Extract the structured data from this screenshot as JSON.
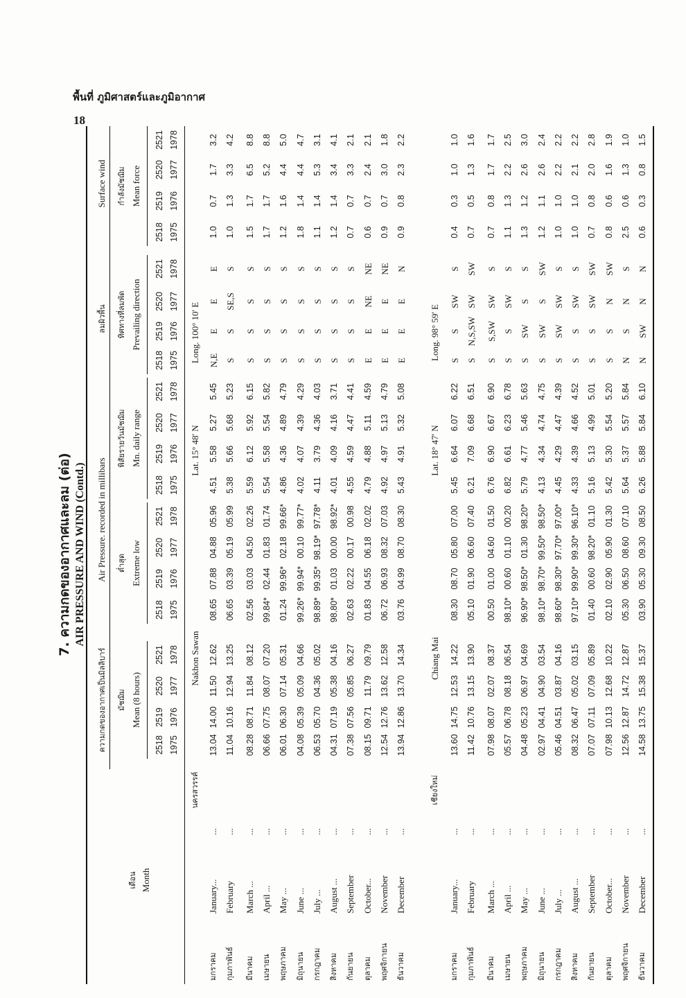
{
  "page_header": {
    "section": "พื้นที่ ภูมิศาสตร์และภูมิอากาศ",
    "page_number": "18"
  },
  "title": {
    "thai": "7. ความกดของอากาศและลม (ต่อ)",
    "english": "AIR PRESSURE AND WIND (Contd.)"
  },
  "headers": {
    "month_thai": "เดือน",
    "month_en": "Month",
    "pressure_thai": "ความกดของอากาศเป็นมิลลิบาร์",
    "pressure_en": "Air Pressure. recorded in millibars",
    "mean_thai": "มัชฌิม",
    "mean_en": "Mean (8 hours)",
    "extreme_thai": "ต่ำสุด",
    "extreme_en": "Extreme low",
    "range_thai": "พิสัยรายวันมัชฌิม",
    "range_en": "Mn. daily range",
    "wind_thai": "ลมผิวพื้น",
    "wind_en": "Surface wind",
    "direction_thai": "ทิศทางที่ลมพัด",
    "direction_en": "Prevailing direction",
    "force_thai": "กำลังมัชฌิม",
    "force_en": "Mean force",
    "years_be": [
      "2518",
      "2519",
      "2520",
      "2521"
    ],
    "years_ce": [
      "1975",
      "1976",
      "1977",
      "1978"
    ]
  },
  "months_thai": [
    "มกราคม",
    "กุมภาพันธ์",
    "มีนาคม",
    "เมษายน",
    "พฤษภาคม",
    "มิถุนายน",
    "กรกฎาคม",
    "สิงหาคม",
    "กันยายน",
    "ตุลาคม",
    "พฤศจิกายน",
    "ธันวาคม"
  ],
  "months_en": [
    "January...",
    "February",
    "March ...",
    "April ...",
    "May ...",
    "June ...",
    "July ...",
    "August ...",
    "September",
    "October...",
    "November",
    "December"
  ],
  "dots": "...",
  "stations": [
    {
      "thai": "นครสวรรค์",
      "name": "Nakhon Sawan",
      "lat": "Lat. 15° 48' N",
      "long": "Long. 100° 10' E",
      "rows": [
        {
          "mean": [
            "13.04",
            "14.00",
            "11.50",
            "12.62"
          ],
          "low": [
            "08.65",
            "07.88",
            "04.88",
            "05.96"
          ],
          "range": [
            "4.51",
            "5.58",
            "5.27",
            "5.45"
          ],
          "dir": [
            "N,E",
            "E",
            "E",
            "E"
          ],
          "force": [
            "1.0",
            "0.7",
            "1.7",
            "3.2"
          ]
        },
        {
          "mean": [
            "11.04",
            "10.16",
            "12.94",
            "13.25"
          ],
          "low": [
            "06.65",
            "03.39",
            "05.19",
            "05.99"
          ],
          "range": [
            "5.38",
            "5.66",
            "5.68",
            "5.23"
          ],
          "dir": [
            "S",
            "S",
            "SE,S",
            "S"
          ],
          "force": [
            "1.0",
            "1.3",
            "3.3",
            "4.2"
          ]
        },
        {
          "mean": [
            "08.28",
            "08.71",
            "11.84",
            "08.12"
          ],
          "low": [
            "02.56",
            "03.03",
            "04.50",
            "02.26"
          ],
          "range": [
            "5.59",
            "6.12",
            "5.92",
            "6.15"
          ],
          "dir": [
            "S",
            "S",
            "S",
            "S"
          ],
          "force": [
            "1.5",
            "1.7",
            "6.5",
            "8.8"
          ]
        },
        {
          "mean": [
            "06.66",
            "07.75",
            "08.07",
            "07.20"
          ],
          "low": [
            "99.84*",
            "02.44",
            "01.83",
            "01.74"
          ],
          "range": [
            "5.54",
            "5.58",
            "5.54",
            "5.82"
          ],
          "dir": [
            "S",
            "S",
            "S",
            "S"
          ],
          "force": [
            "1.7",
            "1.7",
            "5.2",
            "8.8"
          ]
        },
        {
          "mean": [
            "06.01",
            "06.30",
            "07.14",
            "05.31"
          ],
          "low": [
            "01.24",
            "99.96*",
            "02.18",
            "99.66*"
          ],
          "range": [
            "4.86",
            "4.36",
            "4.89",
            "4.79"
          ],
          "dir": [
            "S",
            "S",
            "S",
            "S"
          ],
          "force": [
            "1.2",
            "1.6",
            "4.4",
            "5.0"
          ]
        },
        {
          "mean": [
            "04.08",
            "05.39",
            "05.09",
            "04.66"
          ],
          "low": [
            "99.26*",
            "99.94*",
            "00.10",
            "99.77*"
          ],
          "range": [
            "4.02",
            "4.07",
            "4.39",
            "4.29"
          ],
          "dir": [
            "S",
            "S",
            "S",
            "S"
          ],
          "force": [
            "1.8",
            "1.4",
            "4.4",
            "4.7"
          ]
        },
        {
          "mean": [
            "06.53",
            "05.70",
            "04.36",
            "05.02"
          ],
          "low": [
            "98.89*",
            "99.35*",
            "98.19*",
            "97.78*"
          ],
          "range": [
            "4.11",
            "3.79",
            "4.36",
            "4.03"
          ],
          "dir": [
            "S",
            "S",
            "S",
            "S"
          ],
          "force": [
            "1.1",
            "1.4",
            "5.3",
            "3.1"
          ]
        },
        {
          "mean": [
            "04.31",
            "07.19",
            "05.38",
            "04.16"
          ],
          "low": [
            "98.80*",
            "01.03",
            "00.00",
            "98.92*"
          ],
          "range": [
            "4.01",
            "4.09",
            "4.16",
            "3.71"
          ],
          "dir": [
            "S",
            "S",
            "S",
            "S"
          ],
          "force": [
            "1.2",
            "1.4",
            "3.4",
            "4.1"
          ]
        },
        {
          "mean": [
            "07.38",
            "07.56",
            "05.85",
            "06.27"
          ],
          "low": [
            "02.63",
            "02.22",
            "00.17",
            "00.98"
          ],
          "range": [
            "4.55",
            "4.59",
            "4.47",
            "4.41"
          ],
          "dir": [
            "S",
            "S",
            "S",
            "S"
          ],
          "force": [
            "0.7",
            "0.7",
            "3.3",
            "2.1"
          ]
        },
        {
          "mean": [
            "08.15",
            "09.71",
            "11.79",
            "09.79"
          ],
          "low": [
            "01.83",
            "04.55",
            "06.18",
            "02.02"
          ],
          "range": [
            "4.79",
            "4.88",
            "5.11",
            "4.59"
          ],
          "dir": [
            "E",
            "E",
            "NE",
            "NE"
          ],
          "force": [
            "0.6",
            "0.7",
            "2.4",
            "2.1"
          ]
        },
        {
          "mean": [
            "12.54",
            "12.76",
            "13.62",
            "12.58"
          ],
          "low": [
            "06.72",
            "06.93",
            "08.32",
            "07.03"
          ],
          "range": [
            "4.92",
            "4.97",
            "5.13",
            "4.79"
          ],
          "dir": [
            "E",
            "E",
            "E",
            "NE"
          ],
          "force": [
            "0.9",
            "0.7",
            "3.0",
            "1.8"
          ]
        },
        {
          "mean": [
            "13.94",
            "12.86",
            "13.70",
            "14.34"
          ],
          "low": [
            "03.76",
            "04.99",
            "08.70",
            "08.30"
          ],
          "range": [
            "5.43",
            "4.91",
            "5.32",
            "5.08"
          ],
          "dir": [
            "E",
            "E",
            "E",
            "N"
          ],
          "force": [
            "0.9",
            "0.8",
            "2.3",
            "2.2"
          ]
        }
      ]
    },
    {
      "thai": "เชียงใหม่",
      "name": "Chiang Mai",
      "lat": "Lat. 18° 47' N",
      "long": "Long. 98° 59' E",
      "rows": [
        {
          "mean": [
            "13.60",
            "14.75",
            "12.53",
            "14.22"
          ],
          "low": [
            "08.30",
            "08.70",
            "05.80",
            "07.00"
          ],
          "range": [
            "5.45",
            "6.64",
            "6.07",
            "6.22"
          ],
          "dir": [
            "S",
            "S",
            "SW",
            "S"
          ],
          "force": [
            "0.4",
            "0.3",
            "1.0",
            "1.0"
          ]
        },
        {
          "mean": [
            "11.42",
            "10.76",
            "13.15",
            "13.90"
          ],
          "low": [
            "05.10",
            "01.90",
            "06.60",
            "07.40"
          ],
          "range": [
            "6.21",
            "7.09",
            "6.68",
            "6.51"
          ],
          "dir": [
            "S",
            "N,S,SW",
            "SW",
            "SW"
          ],
          "force": [
            "0.7",
            "0.5",
            "1.3",
            "1.6"
          ]
        },
        {
          "mean": [
            "07.98",
            "08.07",
            "02.07",
            "08.37"
          ],
          "low": [
            "00.50",
            "01.00",
            "04.60",
            "01.50"
          ],
          "range": [
            "6.76",
            "6.90",
            "6.67",
            "6.90"
          ],
          "dir": [
            "S",
            "S,SW",
            "SW",
            "S"
          ],
          "force": [
            "0.7",
            "0.8",
            "1.7",
            "1.7"
          ]
        },
        {
          "mean": [
            "05.57",
            "06.78",
            "08.18",
            "06.54"
          ],
          "low": [
            "98.10*",
            "00.60",
            "01.10",
            "00.20"
          ],
          "range": [
            "6.82",
            "6.61",
            "6.23",
            "6.78"
          ],
          "dir": [
            "S",
            "S",
            "SW",
            "S"
          ],
          "force": [
            "1.1",
            "1.3",
            "2.2",
            "2.5"
          ]
        },
        {
          "mean": [
            "04.48",
            "05.23",
            "06.97",
            "04.69"
          ],
          "low": [
            "96.90*",
            "98.50*",
            "01.30",
            "98.20*"
          ],
          "range": [
            "5.79",
            "4.77",
            "5.46",
            "5.63"
          ],
          "dir": [
            "S",
            "SW",
            "S",
            "S"
          ],
          "force": [
            "1.3",
            "1.2",
            "2.6",
            "3.0"
          ]
        },
        {
          "mean": [
            "02.97",
            "04.41",
            "04.90",
            "03.54"
          ],
          "low": [
            "98.10*",
            "98.70*",
            "99.50*",
            "98.50*"
          ],
          "range": [
            "4.13",
            "4.34",
            "4.74",
            "4.75"
          ],
          "dir": [
            "S",
            "SW",
            "S",
            "SW"
          ],
          "force": [
            "1.2",
            "1.1",
            "2.6",
            "2.4"
          ]
        },
        {
          "mean": [
            "05.46",
            "04.51",
            "03.87",
            "04.16"
          ],
          "low": [
            "98.60*",
            "98.30*",
            "97.70*",
            "97.00*"
          ],
          "range": [
            "4.45",
            "4.29",
            "4.47",
            "4.39"
          ],
          "dir": [
            "S",
            "SW",
            "SW",
            "S"
          ],
          "force": [
            "1.0",
            "1.0",
            "2.2",
            "2.2"
          ]
        },
        {
          "mean": [
            "08.32",
            "06.47",
            "05.02",
            "03.15"
          ],
          "low": [
            "97.10*",
            "99.90*",
            "99.30*",
            "96.10*"
          ],
          "range": [
            "4.33",
            "4.39",
            "4.66",
            "4.52"
          ],
          "dir": [
            "S",
            "S",
            "SW",
            "S"
          ],
          "force": [
            "1.0",
            "1.0",
            "2.1",
            "2.2"
          ]
        },
        {
          "mean": [
            "07.07",
            "07.11",
            "07.09",
            "05.89"
          ],
          "low": [
            "01.40",
            "00.60",
            "98.20*",
            "01.10"
          ],
          "range": [
            "5.16",
            "5.13",
            "4.99",
            "5.01"
          ],
          "dir": [
            "S",
            "S",
            "SW",
            "SW"
          ],
          "force": [
            "0.7",
            "0.8",
            "2.0",
            "2.8"
          ]
        },
        {
          "mean": [
            "07.98",
            "10.13",
            "12.68",
            "10.22"
          ],
          "low": [
            "02.10",
            "02.90",
            "05.90",
            "01.30"
          ],
          "range": [
            "5.42",
            "5.30",
            "5.54",
            "5.20"
          ],
          "dir": [
            "S",
            "S",
            "N",
            "SW"
          ],
          "force": [
            "0.8",
            "0.6",
            "1.6",
            "1.9"
          ]
        },
        {
          "mean": [
            "12.56",
            "12.87",
            "14.72",
            "12.87"
          ],
          "low": [
            "05.30",
            "06.50",
            "08.60",
            "07.10"
          ],
          "range": [
            "5.64",
            "5.37",
            "5.57",
            "5.84"
          ],
          "dir": [
            "N",
            "S",
            "N",
            "S"
          ],
          "force": [
            "2.5",
            "0.6",
            "1.3",
            "1.0"
          ]
        },
        {
          "mean": [
            "14.58",
            "13.75",
            "15.38",
            "15.37"
          ],
          "low": [
            "03.90",
            "05.30",
            "09.30",
            "08.50"
          ],
          "range": [
            "6.26",
            "5.88",
            "5.84",
            "6.10"
          ],
          "dir": [
            "N",
            "SW",
            "N",
            "N"
          ],
          "force": [
            "0.6",
            "0.3",
            "0.8",
            "1.5"
          ]
        }
      ]
    }
  ]
}
